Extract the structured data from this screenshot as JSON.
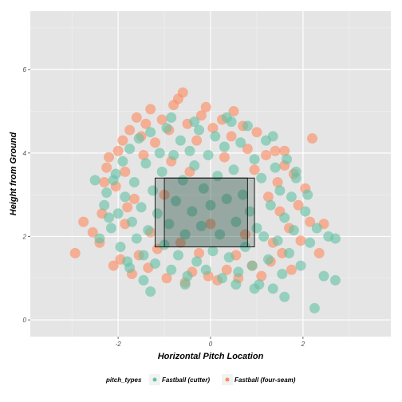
{
  "chart_data": {
    "type": "scatter",
    "title": "",
    "xlabel": "Horizontal Pitch Location",
    "ylabel": "Height from Ground",
    "xlim": [
      -3.9,
      3.9
    ],
    "ylim": [
      -0.4,
      7.4
    ],
    "x_ticks": [
      -2,
      0,
      2
    ],
    "x_tick_labels": [
      "-2",
      "0",
      "2"
    ],
    "y_ticks": [
      0,
      2,
      4,
      6
    ],
    "y_tick_labels": [
      "0",
      "2",
      "4",
      "6"
    ],
    "grid": true,
    "legend": {
      "title": "pitch_types",
      "placement": "bottom",
      "entries": [
        "Fastball (cutter)",
        "Fastball (four-seam)"
      ]
    },
    "strike_zones": [
      {
        "x": [
          -1.2,
          0.95
        ],
        "y": [
          1.75,
          3.4
        ]
      },
      {
        "x": [
          -1.0,
          0.8
        ],
        "y": [
          1.75,
          3.4
        ]
      }
    ],
    "series": [
      {
        "name": "Fastball (four-seam)",
        "color": "#fc8d62",
        "points": [
          [
            -2.93,
            1.6
          ],
          [
            -2.75,
            2.35
          ],
          [
            -2.55,
            2.1
          ],
          [
            -2.4,
            1.85
          ],
          [
            -2.35,
            2.55
          ],
          [
            -2.3,
            3.3
          ],
          [
            -2.25,
            3.65
          ],
          [
            -2.2,
            3.9
          ],
          [
            -2.1,
            1.3
          ],
          [
            -2.0,
            4.05
          ],
          [
            -1.95,
            1.45
          ],
          [
            -1.9,
            4.3
          ],
          [
            -1.85,
            3.55
          ],
          [
            -1.8,
            2.7
          ],
          [
            -1.75,
            4.55
          ],
          [
            -1.7,
            1.1
          ],
          [
            -1.6,
            4.85
          ],
          [
            -1.55,
            1.55
          ],
          [
            -1.5,
            4.4
          ],
          [
            -1.45,
            3.95
          ],
          [
            -1.4,
            4.7
          ],
          [
            -1.35,
            1.25
          ],
          [
            -1.3,
            5.05
          ],
          [
            -1.2,
            4.25
          ],
          [
            -1.15,
            1.7
          ],
          [
            -1.05,
            4.8
          ],
          [
            -0.95,
            1.0
          ],
          [
            -0.9,
            4.55
          ],
          [
            -0.8,
            5.15
          ],
          [
            -0.7,
            5.3
          ],
          [
            -0.6,
            5.45
          ],
          [
            -0.55,
            0.9
          ],
          [
            -0.5,
            4.7
          ],
          [
            -0.4,
            1.15
          ],
          [
            -0.3,
            4.3
          ],
          [
            -0.2,
            4.9
          ],
          [
            -0.1,
            5.1
          ],
          [
            -0.05,
            1.05
          ],
          [
            0.05,
            4.6
          ],
          [
            0.15,
            0.95
          ],
          [
            0.25,
            4.8
          ],
          [
            0.35,
            1.2
          ],
          [
            0.45,
            4.4
          ],
          [
            0.5,
            5.0
          ],
          [
            0.6,
            1.0
          ],
          [
            0.7,
            4.65
          ],
          [
            0.8,
            4.1
          ],
          [
            0.9,
            1.3
          ],
          [
            1.0,
            4.5
          ],
          [
            1.1,
            1.05
          ],
          [
            1.2,
            3.95
          ],
          [
            1.3,
            1.4
          ],
          [
            1.4,
            4.05
          ],
          [
            1.45,
            3.3
          ],
          [
            1.5,
            2.6
          ],
          [
            1.55,
            1.6
          ],
          [
            1.6,
            3.7
          ],
          [
            1.7,
            2.2
          ],
          [
            1.75,
            1.2
          ],
          [
            1.8,
            3.5
          ],
          [
            1.9,
            2.75
          ],
          [
            1.95,
            1.9
          ],
          [
            2.05,
            3.15
          ],
          [
            2.15,
            2.35
          ],
          [
            2.2,
            4.35
          ],
          [
            2.35,
            1.6
          ],
          [
            2.45,
            2.3
          ],
          [
            -1.65,
            2.9
          ],
          [
            -1.3,
            2.1
          ],
          [
            -0.85,
            3.8
          ],
          [
            -0.25,
            1.6
          ],
          [
            0.3,
            3.9
          ],
          [
            0.75,
            2.05
          ],
          [
            1.25,
            2.95
          ],
          [
            -2.05,
            3.2
          ],
          [
            -1.0,
            3.0
          ],
          [
            0.0,
            2.3
          ],
          [
            0.95,
            3.6
          ],
          [
            -0.65,
            1.85
          ],
          [
            1.6,
            4.05
          ],
          [
            -1.85,
            2.3
          ],
          [
            0.55,
            1.55
          ],
          [
            -0.45,
            3.55
          ],
          [
            1.35,
            1.85
          ]
        ]
      },
      {
        "name": "Fastball (cutter)",
        "color": "#66c2a5",
        "points": [
          [
            -2.5,
            3.35
          ],
          [
            -2.4,
            1.95
          ],
          [
            -2.3,
            2.75
          ],
          [
            -2.25,
            3.05
          ],
          [
            -2.15,
            2.2
          ],
          [
            -2.05,
            3.5
          ],
          [
            -2.0,
            2.55
          ],
          [
            -1.95,
            1.75
          ],
          [
            -1.9,
            3.8
          ],
          [
            -1.85,
            2.95
          ],
          [
            -1.8,
            1.4
          ],
          [
            -1.75,
            4.1
          ],
          [
            -1.7,
            2.35
          ],
          [
            -1.65,
            3.3
          ],
          [
            -1.6,
            1.95
          ],
          [
            -1.55,
            4.35
          ],
          [
            -1.5,
            2.7
          ],
          [
            -1.45,
            1.55
          ],
          [
            -1.4,
            3.75
          ],
          [
            -1.35,
            2.15
          ],
          [
            -1.3,
            4.5
          ],
          [
            -1.25,
            3.1
          ],
          [
            -1.2,
            1.35
          ],
          [
            -1.15,
            2.55
          ],
          [
            -1.1,
            4.0
          ],
          [
            -1.05,
            3.55
          ],
          [
            -1.0,
            1.8
          ],
          [
            -0.95,
            4.6
          ],
          [
            -0.9,
            2.3
          ],
          [
            -0.85,
            1.2
          ],
          [
            -0.8,
            3.95
          ],
          [
            -0.75,
            2.85
          ],
          [
            -0.7,
            1.55
          ],
          [
            -0.65,
            4.3
          ],
          [
            -0.6,
            3.35
          ],
          [
            -0.55,
            2.05
          ],
          [
            -0.5,
            1.05
          ],
          [
            -0.45,
            4.05
          ],
          [
            -0.4,
            2.6
          ],
          [
            -0.35,
            3.7
          ],
          [
            -0.3,
            1.4
          ],
          [
            -0.25,
            4.55
          ],
          [
            -0.2,
            2.25
          ],
          [
            -0.15,
            3.15
          ],
          [
            -0.1,
            1.2
          ],
          [
            -0.05,
            3.95
          ],
          [
            0.0,
            2.75
          ],
          [
            0.05,
            1.65
          ],
          [
            0.1,
            4.4
          ],
          [
            0.15,
            3.45
          ],
          [
            0.2,
            2.05
          ],
          [
            0.25,
            1.0
          ],
          [
            0.3,
            4.15
          ],
          [
            0.35,
            2.9
          ],
          [
            0.4,
            1.5
          ],
          [
            0.45,
            4.75
          ],
          [
            0.5,
            3.6
          ],
          [
            0.55,
            2.35
          ],
          [
            0.6,
            1.15
          ],
          [
            0.65,
            4.25
          ],
          [
            0.7,
            3.0
          ],
          [
            0.75,
            1.75
          ],
          [
            0.8,
            4.65
          ],
          [
            0.85,
            2.6
          ],
          [
            0.9,
            1.3
          ],
          [
            0.95,
            3.85
          ],
          [
            1.0,
            2.2
          ],
          [
            1.05,
            0.85
          ],
          [
            1.1,
            3.4
          ],
          [
            1.15,
            2.0
          ],
          [
            1.2,
            4.3
          ],
          [
            1.25,
            1.45
          ],
          [
            1.3,
            2.75
          ],
          [
            1.35,
            0.75
          ],
          [
            1.4,
            3.65
          ],
          [
            1.45,
            1.9
          ],
          [
            1.5,
            3.1
          ],
          [
            1.55,
            1.1
          ],
          [
            1.6,
            2.45
          ],
          [
            1.65,
            3.85
          ],
          [
            1.7,
            1.6
          ],
          [
            1.75,
            2.95
          ],
          [
            1.8,
            2.15
          ],
          [
            1.85,
            3.55
          ],
          [
            1.95,
            1.3
          ],
          [
            2.05,
            2.6
          ],
          [
            2.15,
            1.85
          ],
          [
            2.3,
            2.2
          ],
          [
            2.45,
            1.05
          ],
          [
            2.55,
            2.0
          ],
          [
            2.7,
            1.95
          ],
          [
            2.7,
            0.95
          ],
          [
            2.25,
            0.28
          ],
          [
            -1.3,
            0.68
          ],
          [
            -0.55,
            0.85
          ],
          [
            0.55,
            0.85
          ],
          [
            1.6,
            0.55
          ],
          [
            -2.1,
            3.35
          ],
          [
            -1.75,
            1.25
          ],
          [
            0.35,
            4.85
          ],
          [
            -0.35,
            4.75
          ],
          [
            1.35,
            4.4
          ],
          [
            -1.45,
            0.95
          ],
          [
            0.95,
            0.75
          ],
          [
            -0.85,
            4.85
          ],
          [
            1.85,
            3.4
          ],
          [
            -2.2,
            2.45
          ],
          [
            2.1,
            3.0
          ]
        ]
      }
    ]
  }
}
